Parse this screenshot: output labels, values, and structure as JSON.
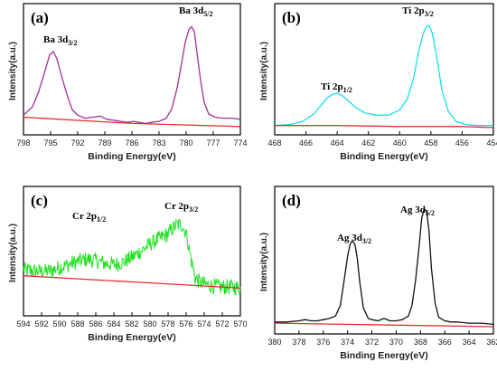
{
  "chart_data": [
    {
      "type": "line",
      "panel_label": "(a)",
      "xlabel": "Binding Energy(eV)",
      "ylabel": "Intensity(a.u.)",
      "xlim": [
        798,
        774
      ],
      "x_ticks": [
        798,
        795,
        792,
        789,
        786,
        783,
        780,
        777,
        774
      ],
      "annotations": [
        {
          "text": "Ba 3d",
          "sub": "3/2",
          "x": 794.6
        },
        {
          "text": "Ba 3d",
          "sub": "5/2",
          "x": 779.4
        }
      ],
      "series": [
        {
          "color": "#a0309a",
          "x": [
            798,
            797,
            796.3,
            795.6,
            795.1,
            794.7,
            794.3,
            793.8,
            793.2,
            792.6,
            792,
            791.2,
            790.3,
            789.5,
            788.8,
            788,
            787.2,
            786.5,
            785.8,
            785.2,
            784.5,
            783.8,
            783,
            782.2,
            781.6,
            781,
            780.5,
            780.1,
            779.7,
            779.4,
            779.1,
            778.8,
            778.4,
            778,
            777.5,
            776.8,
            776,
            775,
            774
          ],
          "y": [
            0.12,
            0.2,
            0.35,
            0.55,
            0.7,
            0.73,
            0.66,
            0.5,
            0.32,
            0.17,
            0.12,
            0.09,
            0.1,
            0.11,
            0.08,
            0.07,
            0.06,
            0.05,
            0.06,
            0.05,
            0.04,
            0.05,
            0.06,
            0.09,
            0.18,
            0.38,
            0.62,
            0.82,
            0.94,
            0.97,
            0.92,
            0.72,
            0.45,
            0.24,
            0.13,
            0.1,
            0.09,
            0.09,
            0.08
          ]
        },
        {
          "color": "#e03030",
          "x": [
            798,
            794,
            790,
            786,
            782,
            778,
            774
          ],
          "y": [
            0.1,
            0.08,
            0.06,
            0.04,
            0.03,
            0.02,
            0.01
          ]
        }
      ]
    },
    {
      "type": "line",
      "panel_label": "(b)",
      "xlabel": "Binding Energy(eV)",
      "ylabel": "Intensity(a.u.)",
      "xlim": [
        468,
        454
      ],
      "x_ticks": [
        468,
        466,
        464,
        462,
        460,
        458,
        456,
        454
      ],
      "annotations": [
        {
          "text": "Ti 2p",
          "sub": "1/2",
          "x": 464.0
        },
        {
          "text": "Ti 2p",
          "sub": "3/2",
          "x": 458.1
        }
      ],
      "series": [
        {
          "color": "#19dde8",
          "x": [
            468,
            467,
            466.2,
            465.5,
            465,
            464.6,
            464.3,
            464,
            463.7,
            463.3,
            462.8,
            462.2,
            461.5,
            460.7,
            460,
            459.5,
            459.1,
            458.8,
            458.5,
            458.3,
            458.1,
            457.9,
            457.6,
            457.3,
            456.9,
            456.4,
            455.8,
            455,
            454
          ],
          "y": [
            0.02,
            0.03,
            0.06,
            0.13,
            0.22,
            0.29,
            0.32,
            0.33,
            0.31,
            0.26,
            0.19,
            0.14,
            0.12,
            0.12,
            0.17,
            0.28,
            0.48,
            0.72,
            0.9,
            0.97,
            0.98,
            0.9,
            0.65,
            0.36,
            0.16,
            0.06,
            0.03,
            0.02,
            0.02
          ]
        },
        {
          "color": "#e03030",
          "x": [
            468,
            464,
            460,
            456,
            454
          ],
          "y": [
            0.02,
            0.02,
            0.01,
            0.01,
            0.0
          ]
        }
      ]
    },
    {
      "type": "line",
      "panel_label": "(c)",
      "xlabel": "Binding Energy(eV)",
      "ylabel": "Intensity(a.u.)",
      "xlim": [
        594,
        570
      ],
      "x_ticks": [
        594,
        592,
        590,
        588,
        586,
        584,
        582,
        580,
        578,
        576,
        574,
        572,
        570
      ],
      "annotations": [
        {
          "text": "Cr 2p",
          "sub": "1/2",
          "x": 586.0
        },
        {
          "text": "Cr 2p",
          "sub": "3/2",
          "x": 576.6
        }
      ],
      "series": [
        {
          "color": "#1ee01e",
          "noise": 0.075,
          "x": [
            594,
            593,
            592,
            591,
            590,
            589,
            588,
            587,
            586,
            585,
            584,
            583,
            582,
            581,
            580,
            579,
            578,
            577.5,
            577,
            576.5,
            576,
            575.5,
            575,
            574.5,
            574,
            573,
            572,
            571,
            570
          ],
          "y": [
            0.38,
            0.37,
            0.36,
            0.37,
            0.4,
            0.43,
            0.46,
            0.48,
            0.47,
            0.44,
            0.43,
            0.45,
            0.5,
            0.56,
            0.63,
            0.68,
            0.73,
            0.78,
            0.82,
            0.82,
            0.74,
            0.5,
            0.3,
            0.26,
            0.24,
            0.22,
            0.21,
            0.21,
            0.2
          ]
        },
        {
          "color": "#e03030",
          "x": [
            594,
            588,
            582,
            576,
            570
          ],
          "y": [
            0.32,
            0.29,
            0.26,
            0.23,
            0.2
          ]
        }
      ]
    },
    {
      "type": "line",
      "panel_label": "(d)",
      "xlabel": "Binding Energy(eV)",
      "ylabel": "Intensity(a.u.)",
      "xlim": [
        380,
        362
      ],
      "x_ticks": [
        380,
        378,
        376,
        374,
        372,
        370,
        368,
        366,
        364,
        362
      ],
      "annotations": [
        {
          "text": "Ag 3d",
          "sub": "3/2",
          "x": 373.6
        },
        {
          "text": "Ag 3d",
          "sub": "5/2",
          "x": 367.6
        }
      ],
      "series": [
        {
          "color": "#111111",
          "x": [
            380,
            379,
            378,
            377.5,
            377,
            376.5,
            376,
            375.5,
            375,
            374.6,
            374.3,
            374,
            373.8,
            373.6,
            373.4,
            373.2,
            373,
            372.7,
            372.3,
            372,
            371.5,
            371,
            370.5,
            370,
            369.5,
            369,
            368.7,
            368.4,
            368.1,
            367.9,
            367.7,
            367.5,
            367.3,
            367.1,
            366.8,
            366.5,
            366,
            365.5,
            365,
            364,
            363,
            362
          ],
          "y": [
            0.04,
            0.04,
            0.05,
            0.06,
            0.05,
            0.05,
            0.06,
            0.07,
            0.09,
            0.18,
            0.38,
            0.6,
            0.7,
            0.73,
            0.7,
            0.58,
            0.38,
            0.16,
            0.07,
            0.06,
            0.05,
            0.07,
            0.05,
            0.05,
            0.06,
            0.09,
            0.18,
            0.4,
            0.7,
            0.92,
            1.0,
            0.98,
            0.82,
            0.5,
            0.2,
            0.08,
            0.05,
            0.04,
            0.04,
            0.03,
            0.03,
            0.02
          ]
        },
        {
          "color": "#e03030",
          "x": [
            380,
            374,
            368,
            362
          ],
          "y": [
            0.03,
            0.02,
            0.01,
            0.0
          ]
        }
      ]
    }
  ]
}
